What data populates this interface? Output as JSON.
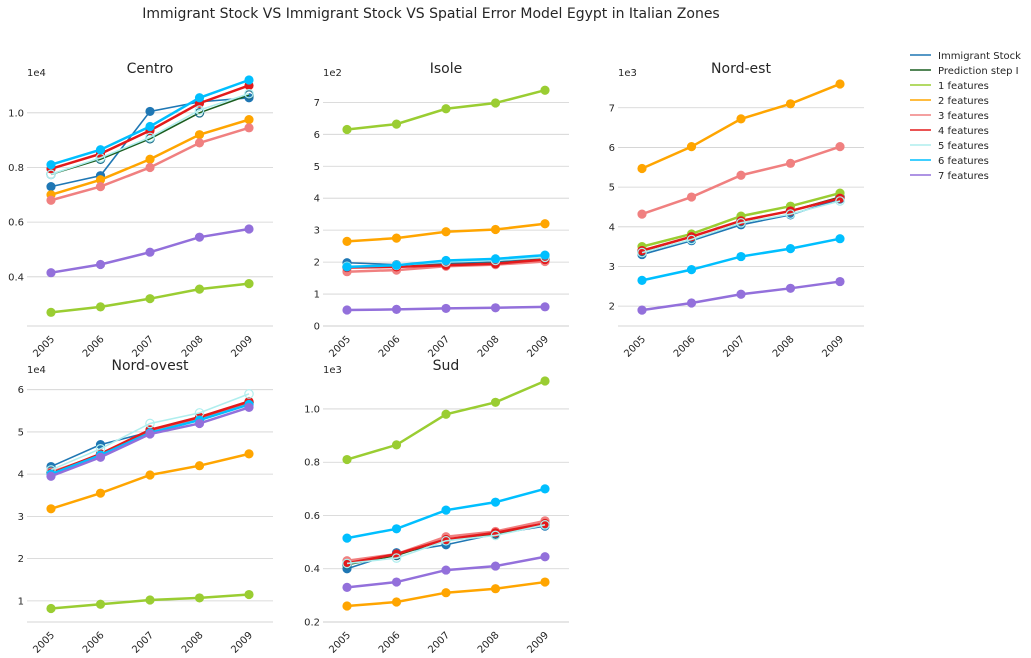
{
  "chart_data": {
    "type": "line",
    "title": "Immigrant Stock VS Immigrant Stock VS Spatial Error Model Egypt in Italian Zones",
    "x": [
      "2005",
      "2006",
      "2007",
      "2008",
      "2009"
    ],
    "legend": {
      "placement": "top-right",
      "entries": [
        {
          "label": "Immigrant Stock",
          "color": "#1f77b4"
        },
        {
          "label": "Prediction step I",
          "color": "#1b5e20"
        },
        {
          "label": "1 features",
          "color": "#9acd32"
        },
        {
          "label": "2 features",
          "color": "#ffa500"
        },
        {
          "label": "3 features",
          "color": "#f08080"
        },
        {
          "label": "4 features",
          "color": "#e31a1c"
        },
        {
          "label": "5 features",
          "color": "#afeeee"
        },
        {
          "label": "6 features",
          "color": "#00bfff"
        },
        {
          "label": "7 features",
          "color": "#9370db"
        }
      ]
    },
    "panels": [
      {
        "title": "Centro",
        "multiplier": "1e4",
        "ylim": [
          0.22,
          1.12
        ],
        "yticks": [
          0.4,
          0.6,
          0.8,
          1.0
        ],
        "ytick_labels": [
          "0.4",
          "0.6",
          "0.8",
          "1.0"
        ],
        "grid": true,
        "series": [
          {
            "name": "Immigrant Stock",
            "values": [
              0.73,
              0.77,
              1.005,
              1.04,
              1.055
            ]
          },
          {
            "name": "Prediction step I",
            "values": [
              0.775,
              0.83,
              0.905,
              1.0,
              1.065
            ]
          },
          {
            "name": "1 features",
            "values": [
              0.27,
              0.29,
              0.32,
              0.355,
              0.375
            ]
          },
          {
            "name": "2 features",
            "values": [
              0.7,
              0.755,
              0.83,
              0.92,
              0.975
            ]
          },
          {
            "name": "3 features",
            "values": [
              0.68,
              0.73,
              0.8,
              0.89,
              0.945
            ]
          },
          {
            "name": "4 features",
            "values": [
              0.795,
              0.85,
              0.935,
              1.035,
              1.1
            ]
          },
          {
            "name": "5 features",
            "values": [
              0.775,
              0.835,
              0.91,
              1.01,
              1.07
            ]
          },
          {
            "name": "6 features",
            "values": [
              0.81,
              0.865,
              0.95,
              1.055,
              1.12
            ]
          },
          {
            "name": "7 features",
            "values": [
              0.415,
              0.445,
              0.49,
              0.545,
              0.575
            ]
          }
        ]
      },
      {
        "title": "Isole",
        "multiplier": "1e2",
        "ylim": [
          0,
          7.7
        ],
        "yticks": [
          0,
          1,
          2,
          3,
          4,
          5,
          6,
          7
        ],
        "ytick_labels": [
          "0",
          "1",
          "2",
          "3",
          "4",
          "5",
          "6",
          "7"
        ],
        "grid": true,
        "series": [
          {
            "name": "Immigrant Stock",
            "values": [
              1.98,
              1.92,
              1.96,
              2.0,
              2.15
            ]
          },
          {
            "name": "Prediction step I",
            "values": [
              1.85,
              1.87,
              1.92,
              1.97,
              2.1
            ]
          },
          {
            "name": "1 features",
            "values": [
              6.15,
              6.32,
              6.8,
              6.98,
              7.38
            ]
          },
          {
            "name": "2 features",
            "values": [
              2.65,
              2.75,
              2.95,
              3.02,
              3.2
            ]
          },
          {
            "name": "3 features",
            "values": [
              1.7,
              1.75,
              1.87,
              1.92,
              2.02
            ]
          },
          {
            "name": "4 features",
            "values": [
              1.83,
              1.85,
              1.9,
              1.95,
              2.08
            ]
          },
          {
            "name": "5 features",
            "values": [
              1.87,
              1.9,
              2.0,
              2.05,
              2.15
            ]
          },
          {
            "name": "6 features",
            "values": [
              1.85,
              1.9,
              2.05,
              2.1,
              2.22
            ]
          },
          {
            "name": "7 features",
            "values": [
              0.5,
              0.52,
              0.55,
              0.57,
              0.6
            ]
          }
        ]
      },
      {
        "title": "Nord-est",
        "multiplier": "1e3",
        "ylim": [
          1.5,
          7.7
        ],
        "yticks": [
          2,
          3,
          4,
          5,
          6,
          7
        ],
        "ytick_labels": [
          "2",
          "3",
          "4",
          "5",
          "6",
          "7"
        ],
        "grid": true,
        "series": [
          {
            "name": "Immigrant Stock",
            "values": [
              3.3,
              3.65,
              4.05,
              4.3,
              4.7
            ]
          },
          {
            "name": "Prediction step I",
            "values": [
              3.38,
              3.75,
              4.15,
              4.4,
              4.75
            ]
          },
          {
            "name": "1 features",
            "values": [
              3.5,
              3.82,
              4.27,
              4.52,
              4.85
            ]
          },
          {
            "name": "2 features",
            "values": [
              5.47,
              6.02,
              6.72,
              7.1,
              7.6
            ]
          },
          {
            "name": "3 features",
            "values": [
              4.32,
              4.75,
              5.3,
              5.6,
              6.02
            ]
          },
          {
            "name": "4 features",
            "values": [
              3.4,
              3.75,
              4.15,
              4.4,
              4.72
            ]
          },
          {
            "name": "5 features",
            "values": [
              3.35,
              3.68,
              4.1,
              4.32,
              4.65
            ]
          },
          {
            "name": "6 features",
            "values": [
              2.65,
              2.92,
              3.25,
              3.45,
              3.7
            ]
          },
          {
            "name": "7 features",
            "values": [
              1.9,
              2.08,
              2.3,
              2.45,
              2.62
            ]
          }
        ]
      },
      {
        "title": "Nord-ovest",
        "multiplier": "1e4",
        "ylim": [
          0.5,
          6.3
        ],
        "yticks": [
          1,
          2,
          3,
          4,
          5,
          6
        ],
        "ytick_labels": [
          "1",
          "2",
          "3",
          "4",
          "5",
          "6"
        ],
        "grid": true,
        "series": [
          {
            "name": "Immigrant Stock",
            "values": [
              4.18,
              4.7,
              5.0,
              5.3,
              5.65
            ]
          },
          {
            "name": "Prediction step I",
            "values": [
              4.05,
              4.45,
              5.0,
              5.3,
              5.7
            ]
          },
          {
            "name": "1 features",
            "values": [
              0.82,
              0.92,
              1.02,
              1.07,
              1.15
            ]
          },
          {
            "name": "2 features",
            "values": [
              3.18,
              3.55,
              3.98,
              4.2,
              4.48
            ]
          },
          {
            "name": "3 features",
            "values": [
              4.05,
              4.45,
              5.0,
              5.3,
              5.7
            ]
          },
          {
            "name": "4 features",
            "values": [
              4.02,
              4.48,
              5.05,
              5.35,
              5.72
            ]
          },
          {
            "name": "5 features",
            "values": [
              4.1,
              4.6,
              5.2,
              5.45,
              5.9
            ]
          },
          {
            "name": "6 features",
            "values": [
              4.0,
              4.45,
              4.98,
              5.28,
              5.65
            ]
          },
          {
            "name": "7 features",
            "values": [
              3.95,
              4.4,
              4.95,
              5.2,
              5.58
            ]
          }
        ]
      },
      {
        "title": "Sud",
        "multiplier": "1e3",
        "ylim": [
          0.2,
          1.12
        ],
        "yticks": [
          0.2,
          0.4,
          0.6,
          0.8,
          1.0
        ],
        "ytick_labels": [
          "0.2",
          "0.4",
          "0.6",
          "0.8",
          "1.0"
        ],
        "grid": true,
        "series": [
          {
            "name": "Immigrant Stock",
            "values": [
              0.4,
              0.46,
              0.49,
              0.53,
              0.56
            ]
          },
          {
            "name": "Prediction step I",
            "values": [
              0.415,
              0.45,
              0.51,
              0.53,
              0.565
            ]
          },
          {
            "name": "1 features",
            "values": [
              0.81,
              0.865,
              0.98,
              1.025,
              1.105
            ]
          },
          {
            "name": "2 features",
            "values": [
              0.26,
              0.275,
              0.31,
              0.325,
              0.35
            ]
          },
          {
            "name": "3 features",
            "values": [
              0.43,
              0.455,
              0.52,
              0.54,
              0.58
            ]
          },
          {
            "name": "4 features",
            "values": [
              0.42,
              0.455,
              0.51,
              0.535,
              0.57
            ]
          },
          {
            "name": "5 features",
            "values": [
              0.42,
              0.44,
              0.505,
              0.525,
              0.565
            ]
          },
          {
            "name": "6 features",
            "values": [
              0.515,
              0.55,
              0.62,
              0.65,
              0.7
            ]
          },
          {
            "name": "7 features",
            "values": [
              0.33,
              0.35,
              0.395,
              0.41,
              0.445
            ]
          }
        ]
      }
    ]
  }
}
